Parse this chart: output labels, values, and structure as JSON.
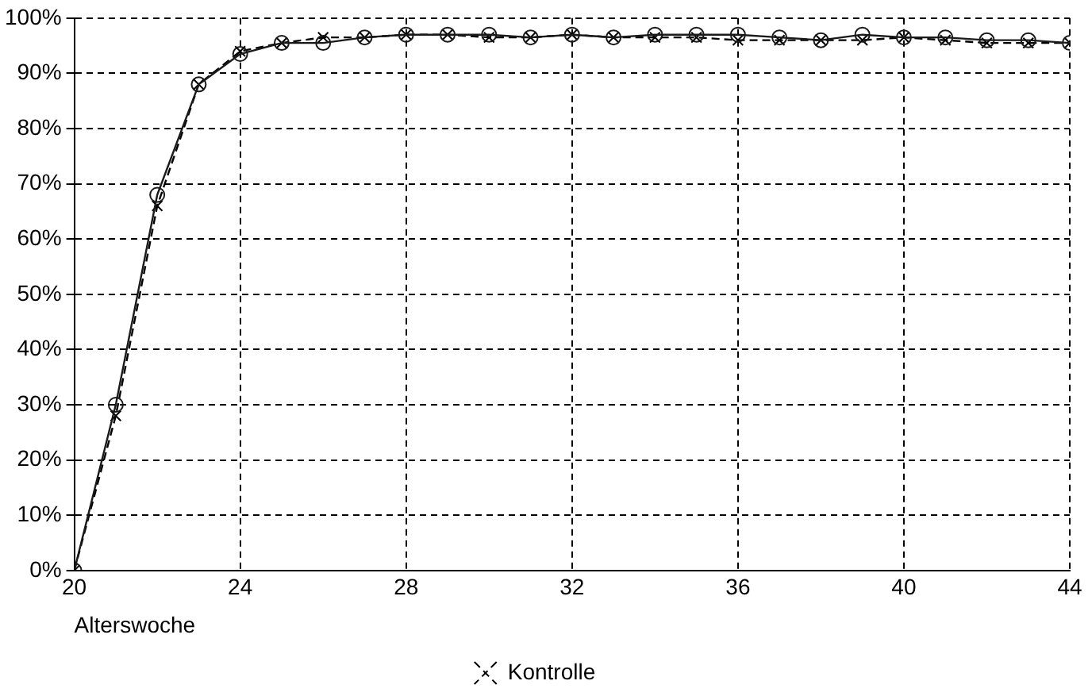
{
  "chart_data": {
    "type": "line",
    "xlabel": "Alterswoche",
    "x": [
      20,
      21,
      22,
      23,
      24,
      25,
      26,
      27,
      28,
      29,
      30,
      31,
      32,
      33,
      34,
      35,
      36,
      37,
      38,
      39,
      40,
      41,
      42,
      43,
      44
    ],
    "series": [
      {
        "name": "Kontrolle",
        "color": "#000000",
        "line_style": "dashed",
        "marker": "cross",
        "values": [
          0,
          28,
          66,
          88,
          94,
          95.5,
          96.5,
          96.5,
          97,
          97,
          96.5,
          96.5,
          97,
          96.5,
          96.5,
          96.5,
          96,
          96,
          96,
          96,
          96.5,
          96,
          95.5,
          95.5,
          95.5
        ]
      },
      {
        "color": "#1a1a1a",
        "line_style": "solid",
        "marker": "circle",
        "values": [
          0,
          30,
          68,
          88,
          93.5,
          95.5,
          95.5,
          96.5,
          97,
          97,
          97,
          96.5,
          97,
          96.5,
          97,
          97,
          97,
          96.5,
          96,
          97,
          96.5,
          96.5,
          96,
          96,
          95.5
        ]
      }
    ],
    "xlim": [
      20,
      44
    ],
    "xticks": [
      20,
      24,
      28,
      32,
      36,
      40,
      44
    ],
    "ylim": [
      0,
      100
    ],
    "yticks": [
      {
        "value": 0,
        "label": "0%"
      },
      {
        "value": 10,
        "label": "10%"
      },
      {
        "value": 20,
        "label": "20%"
      },
      {
        "value": 30,
        "label": "30%"
      },
      {
        "value": 40,
        "label": "40%"
      },
      {
        "value": 50,
        "label": "50%"
      },
      {
        "value": 60,
        "label": "60%"
      },
      {
        "value": 70,
        "label": "70%"
      },
      {
        "value": 80,
        "label": "80%"
      },
      {
        "value": 90,
        "label": "90%"
      },
      {
        "value": 100,
        "label": "100%"
      }
    ],
    "grid": true,
    "legend": "bottom"
  }
}
